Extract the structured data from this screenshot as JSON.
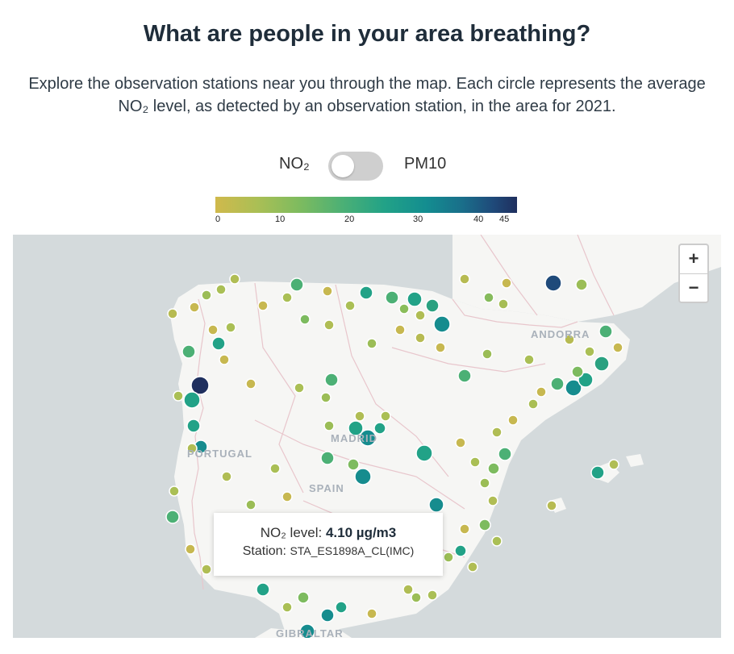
{
  "header": {
    "title": "What are people in your area breathing?",
    "subtitle": "Explore the observation stations near you through the map. Each circle represents the average NO₂ level, as detected by an observation station, in the area for 2021."
  },
  "toggle": {
    "left_label": "NO₂",
    "right_label": "PM10",
    "selected": "NO₂"
  },
  "color_scale": {
    "ticks": [
      "0",
      "10",
      "20",
      "30",
      "40",
      "45"
    ],
    "min": 0,
    "max": 45,
    "colors": [
      "#d0b94c",
      "#7dbb5f",
      "#22a287",
      "#1a6e8a",
      "#1f2f5e"
    ]
  },
  "map": {
    "labels": {
      "andorra": "ANDORRA",
      "portugal": "PORTUGAL",
      "spain": "SPAIN",
      "madrid": "MADRID",
      "gibraltar": "GIBRALTAR"
    },
    "zoom_in": "+",
    "zoom_out": "−"
  },
  "tooltip": {
    "metric_label": "NO₂ level:",
    "value": "4.10 µg/m3",
    "station_label": "Station:",
    "station": "STA_ES1898A_CL(IMC)"
  },
  "colors": {
    "water": "#d4dadc",
    "land": "#f6f6f4",
    "border": "#e8c6cc"
  }
}
